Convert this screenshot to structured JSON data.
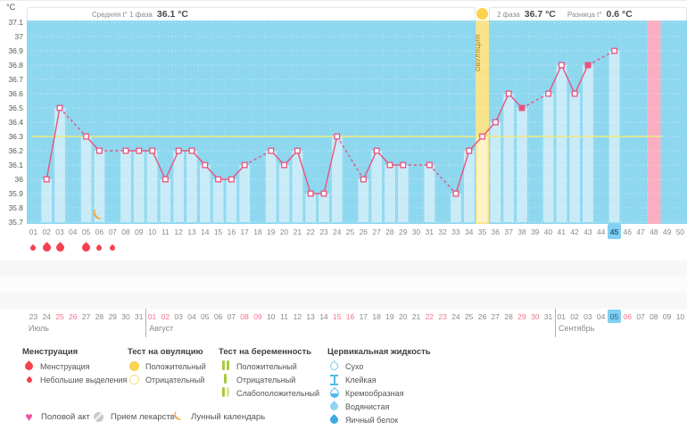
{
  "header": {
    "unit_label": "°C",
    "phase1_label": "Средняя t° 1 фаза",
    "phase1_value": "36.1 °C",
    "phase2_label": "2 фаза",
    "phase2_value": "36.7 °C",
    "diff_label": "Разница t°",
    "diff_value": "0.6 °C",
    "ovulation_band_label": "ОВУЛЯЦИЯ"
  },
  "chart_data": {
    "type": "line",
    "ylabel": "°C",
    "ylim": [
      35.7,
      37.1
    ],
    "ytick_step": 0.1,
    "num_cycle_days": 50,
    "coverline_temp": 36.3,
    "ovulation_day": 35,
    "today_cycle_day": 45,
    "expected_period_day": 48,
    "lunar_icon_day": 6,
    "filled_marker_days": [
      38,
      43
    ],
    "menstruation_days": [
      2,
      3,
      5
    ],
    "spotting_days": [
      1,
      6,
      7
    ],
    "dpo_row": {
      "count": 15,
      "highlighted_day": 13
    },
    "series": [
      {
        "name": "temperature",
        "values": [
          null,
          36.0,
          36.5,
          null,
          36.3,
          36.2,
          null,
          36.2,
          36.2,
          36.2,
          36.0,
          36.2,
          36.2,
          36.1,
          36.0,
          36.0,
          36.1,
          null,
          36.2,
          36.1,
          36.2,
          35.9,
          35.9,
          36.3,
          null,
          36.0,
          36.2,
          36.1,
          36.1,
          null,
          36.1,
          null,
          35.9,
          36.2,
          36.3,
          36.4,
          36.6,
          36.5,
          null,
          36.6,
          36.8,
          36.6,
          36.8,
          null,
          36.9,
          null,
          null,
          null,
          null,
          null
        ]
      }
    ]
  },
  "calendar": {
    "months": [
      {
        "name": "Июль",
        "dates": [
          "23",
          "24",
          "25",
          "26",
          "27",
          "28",
          "29",
          "30",
          "31"
        ],
        "weekend_dates": [
          "25",
          "26"
        ]
      },
      {
        "name": "Август",
        "dates": [
          "01",
          "02",
          "03",
          "04",
          "05",
          "06",
          "07",
          "08",
          "09",
          "10",
          "11",
          "12",
          "13",
          "14",
          "15",
          "16",
          "17",
          "18",
          "19",
          "20",
          "21",
          "22",
          "23",
          "24",
          "25",
          "26",
          "27",
          "28",
          "29",
          "30",
          "31"
        ],
        "weekend_dates": [
          "01",
          "02",
          "08",
          "09",
          "15",
          "16",
          "22",
          "23",
          "29",
          "30"
        ]
      },
      {
        "name": "Сентябрь",
        "dates": [
          "01",
          "02",
          "03",
          "04",
          "05",
          "06",
          "07",
          "08",
          "09",
          "10"
        ],
        "weekend_dates": [
          "06"
        ],
        "today_date": "05"
      }
    ]
  },
  "legend": {
    "columns": [
      {
        "title": "Менструация",
        "items": [
          {
            "icon": "drop-big-red",
            "icon_name": "menstruation-icon",
            "label": "Менструация"
          },
          {
            "icon": "drop-small-red",
            "icon_name": "spotting-icon",
            "label": "Небольшие выделения"
          }
        ]
      },
      {
        "title": "Тест на овуляцию",
        "items": [
          {
            "icon": "circle-yellow-filled",
            "icon_name": "ovulation-test-positive-icon",
            "label": "Положительный"
          },
          {
            "icon": "circle-yellow-outline",
            "icon_name": "ovulation-test-negative-icon",
            "label": "Отрицательный"
          }
        ]
      },
      {
        "title": "Тест на беременность",
        "items": [
          {
            "icon": "bars-two-green",
            "icon_name": "pregnancy-test-positive-icon",
            "label": "Положительный"
          },
          {
            "icon": "bar-one-green",
            "icon_name": "pregnancy-test-negative-icon",
            "label": "Отрицательный"
          },
          {
            "icon": "bars-weak-green",
            "icon_name": "pregnancy-test-weak-positive-icon",
            "label": "Слабоположительный"
          }
        ]
      },
      {
        "title": "Цервикальная жидкость",
        "items": [
          {
            "icon": "drop-outline-blue",
            "icon_name": "cervical-dry-icon",
            "label": "Сухо"
          },
          {
            "icon": "ibeam-blue",
            "icon_name": "cervical-sticky-icon",
            "label": "Клейкая"
          },
          {
            "icon": "drop-half-blue",
            "icon_name": "cervical-creamy-icon",
            "label": "Кремообразная"
          },
          {
            "icon": "drop-light-blue",
            "icon_name": "cervical-watery-icon",
            "label": "Водянистая"
          },
          {
            "icon": "drop-solid-blue",
            "icon_name": "cervical-eggwhite-icon",
            "label": "Яичный белок"
          }
        ]
      }
    ],
    "footer_items": [
      {
        "icon": "heart-pink",
        "icon_name": "intercourse-icon",
        "label": "Половой акт"
      },
      {
        "icon": "pill-gray",
        "icon_name": "medication-icon",
        "label": "Прием лекарств"
      },
      {
        "icon": "moon-orange",
        "icon_name": "lunar-calendar-icon",
        "label": "Лунный календарь"
      }
    ]
  },
  "colors": {
    "chart_background": "#8dd7ef",
    "temperature_bar": "#c9ebf8",
    "ovulation_band": "#f7e388",
    "ovulation_band_bar": "#fdf3c4",
    "expected_period_band": "#f9aec2",
    "temperature_line": "#e8537d",
    "coverline": "#eeea7c",
    "menstruation_red": "#f4424e",
    "today_highlight": "#7fd0f2",
    "weekend_text": "#f4738f",
    "dpo_highlight": "#f9b5c5",
    "ovulation_test_yellow": "#fbd34d",
    "pregnancy_test_green": "#a6c93c",
    "cervical_blue": "#54b9e9",
    "heart_pink": "#ef4f9e",
    "moon_orange": "#f2a73b",
    "pill_gray": "#c9c9c9"
  }
}
